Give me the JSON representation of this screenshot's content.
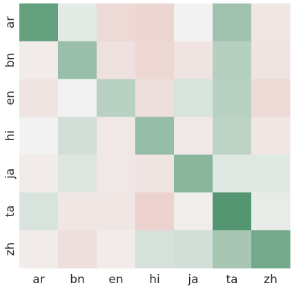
{
  "chart_data": {
    "type": "heatmap",
    "title": "",
    "xlabel": "",
    "ylabel": "",
    "x_categories": [
      "ar",
      "bn",
      "en",
      "hi",
      "ja",
      "ta",
      "zh"
    ],
    "y_categories": [
      "ar",
      "bn",
      "en",
      "hi",
      "ja",
      "ta",
      "zh"
    ],
    "colormap": "diverging pink-to-green (center near-white)",
    "value_range": [
      -1,
      1
    ],
    "colorbar": false,
    "colors": {
      "negative_end": "#d97a6a",
      "center": "#f2f2f2",
      "positive_end": "#3f8a5f"
    },
    "values": [
      [
        0.78,
        0.08,
        -0.2,
        -0.24,
        0.0,
        0.46,
        -0.1
      ],
      [
        -0.06,
        0.5,
        -0.14,
        -0.22,
        -0.12,
        0.34,
        -0.12
      ],
      [
        -0.12,
        0.0,
        0.32,
        -0.16,
        0.14,
        0.32,
        -0.2
      ],
      [
        0.0,
        0.18,
        -0.08,
        0.52,
        -0.08,
        0.3,
        -0.1
      ],
      [
        -0.06,
        0.12,
        -0.08,
        -0.12,
        0.58,
        0.1,
        0.1
      ],
      [
        0.14,
        -0.1,
        -0.1,
        -0.26,
        -0.04,
        0.88,
        0.06
      ],
      [
        -0.06,
        -0.16,
        -0.06,
        0.16,
        0.18,
        0.42,
        0.7
      ]
    ]
  }
}
